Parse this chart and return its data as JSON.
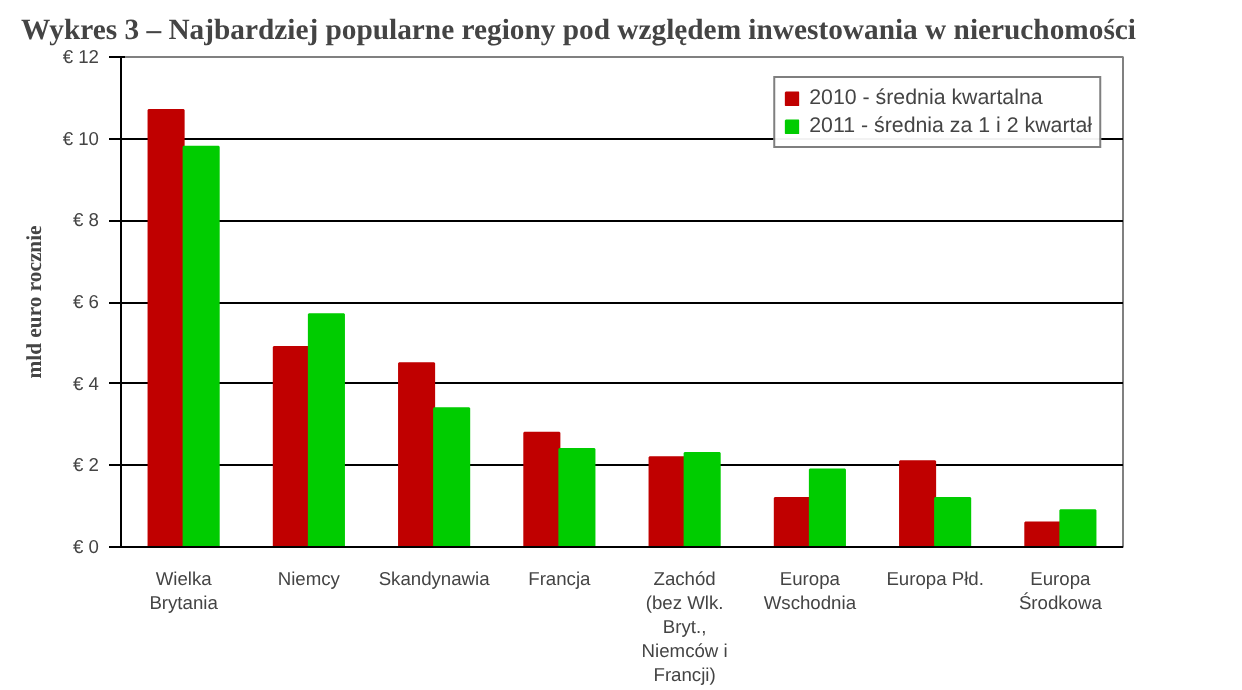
{
  "chart_data": {
    "type": "bar",
    "title": "Wykres 3 – Najbardziej popularne regiony pod względem inwestowania w nieruchomości",
    "ylabel": "mld euro rocznie",
    "categories": [
      "Wielka\nBrytania",
      "Niemcy",
      "Skandynawia",
      "Francja",
      "Zachód\n(bez Wlk.\nBryt.,\nNiemców i\nFrancji)",
      "Europa\nWschodnia",
      "Europa Płd.",
      "Europa\nŚrodkowa"
    ],
    "series": [
      {
        "name": "2010 - średnia kwartalna",
        "color": "#c00000",
        "values": [
          10.7,
          4.9,
          4.5,
          2.8,
          2.2,
          1.2,
          2.1,
          0.6
        ]
      },
      {
        "name": "2011 - średnia za 1 i 2 kwartał",
        "color": "#00cc00",
        "values": [
          9.8,
          5.7,
          3.4,
          2.4,
          2.3,
          1.9,
          1.2,
          0.9
        ]
      }
    ],
    "ylim": [
      0,
      12
    ],
    "yticks": [
      {
        "value": 0,
        "label": "€ 0"
      },
      {
        "value": 2,
        "label": "€ 2"
      },
      {
        "value": 4,
        "label": "€ 4"
      },
      {
        "value": 6,
        "label": "€ 6"
      },
      {
        "value": 8,
        "label": "€ 8"
      },
      {
        "value": 10,
        "label": "€ 10"
      },
      {
        "value": 12,
        "label": "€ 12"
      }
    ],
    "grid": "y",
    "legend": "top right"
  }
}
